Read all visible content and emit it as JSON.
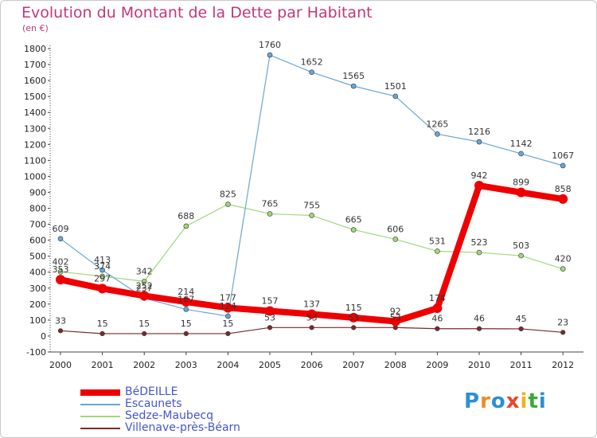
{
  "title": "Evolution du Montant de la Dette par Habitant",
  "subtitle": "(en €)",
  "logo": {
    "text": "Proxiti",
    "letters": [
      "P",
      "r",
      "o",
      "x",
      "i",
      "t",
      "i"
    ],
    "colors": [
      "#2b8fd6",
      "#f08a24",
      "#2b8fd6",
      "#e8452c",
      "#f0b020",
      "#3aaa35",
      "#2b8fd6"
    ]
  },
  "chart_data": {
    "type": "line",
    "categories": [
      "2000",
      "2001",
      "2002",
      "2003",
      "2004",
      "2005",
      "2006",
      "2007",
      "2008",
      "2009",
      "2010",
      "2011",
      "2012"
    ],
    "ylim": [
      -100,
      1800
    ],
    "yticks": [
      -100,
      0,
      100,
      200,
      300,
      400,
      500,
      600,
      700,
      800,
      900,
      1000,
      1100,
      1200,
      1300,
      1400,
      1500,
      1600,
      1700,
      1800
    ],
    "grid": false,
    "legend_position": "bottom-left",
    "series": [
      {
        "name": "Villenave-près-Béarn",
        "color": "#7a2a2a",
        "width": 1.2,
        "marker": 2.8,
        "values": [
          33,
          15,
          15,
          15,
          15,
          53,
          53,
          53,
          53,
          46,
          46,
          45,
          23
        ],
        "labels": [
          "33",
          "15",
          "15",
          "15",
          "15",
          "53",
          "53",
          "53",
          "53",
          "46",
          "46",
          "45",
          "23"
        ]
      },
      {
        "name": "Sedze-Maubecq",
        "color": "#9fd87a",
        "width": 1.2,
        "marker": 3,
        "values": [
          402,
          374,
          342,
          688,
          825,
          765,
          755,
          665,
          606,
          531,
          523,
          503,
          420
        ],
        "labels": [
          "402",
          "374",
          "342",
          "688",
          "825",
          "765",
          "755",
          "665",
          "606",
          "531",
          "523",
          "503",
          "420"
        ]
      },
      {
        "name": "Escaunets",
        "color": "#6aa6d6",
        "width": 1.2,
        "marker": 3,
        "values": [
          609,
          413,
          237,
          167,
          124,
          1760,
          1652,
          1565,
          1501,
          1265,
          1216,
          1142,
          1067
        ],
        "labels": [
          "609",
          "413",
          "237",
          "167",
          "124",
          "1760",
          "1652",
          "1565",
          "1501",
          "1265",
          "1216",
          "1142",
          "1067"
        ]
      },
      {
        "name": "BéDEILLE",
        "color": "#ee0000",
        "width": 8,
        "marker": 6,
        "values": [
          353,
          297,
          252,
          214,
          177,
          157,
          137,
          115,
          92,
          174,
          942,
          899,
          858
        ],
        "labels": [
          "353",
          "297",
          "252",
          "214",
          "177",
          "157",
          "137",
          "115",
          "92",
          "174",
          "942",
          "899",
          "858"
        ]
      }
    ],
    "legend": [
      {
        "name": "BéDEILLE",
        "color": "#ee0000",
        "height": 8
      },
      {
        "name": "Escaunets",
        "color": "#6aa6d6",
        "height": 2
      },
      {
        "name": "Sedze-Maubecq",
        "color": "#9fd87a",
        "height": 2
      },
      {
        "name": "Villenave-près-Béarn",
        "color": "#7a2a2a",
        "height": 2
      }
    ]
  }
}
